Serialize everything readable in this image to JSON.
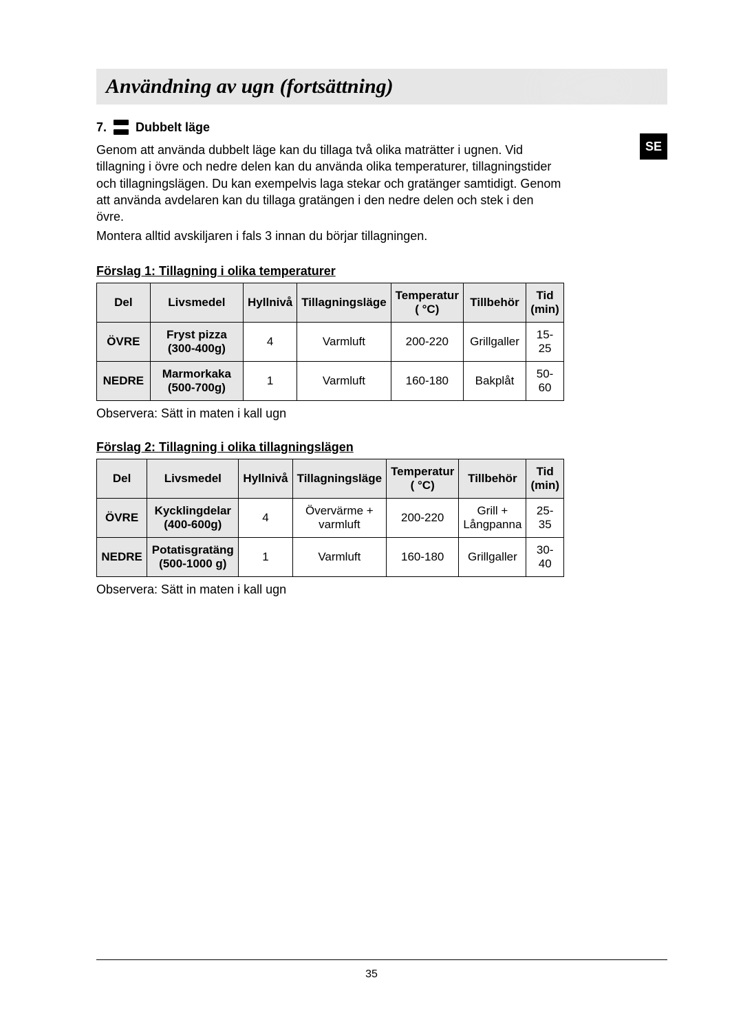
{
  "header": {
    "title": "Användning av ugn (fortsättning)"
  },
  "lang_tab": "SE",
  "section": {
    "number": "7.",
    "heading": "Dubbelt läge",
    "paragraph1": "Genom att använda dubbelt läge kan du tillaga två olika maträtter i ugnen. Vid tillagning i övre och nedre delen kan du använda olika temperaturer, tillagningstider och tillagningslägen. Du kan exempelvis laga stekar och gratänger samtidigt. Genom att använda avdelaren kan du tillaga gratängen i den nedre delen och stek i den övre.",
    "paragraph2": "Montera alltid avskiljaren i fals 3 innan du börjar tillagningen."
  },
  "table_headers": {
    "del": "Del",
    "food": "Livsmedel",
    "level": "Hyllnivå",
    "mode": "Tillagningsläge",
    "temp": "Temperatur ( °C)",
    "acc": "Tillbehör",
    "time": "Tid (min)"
  },
  "suggestion1": {
    "title": "Förslag 1: Tillagning i olika temperaturer",
    "rows": [
      {
        "del": "ÖVRE",
        "food": "Fryst pizza (300-400g)",
        "level": "4",
        "mode": "Varmluft",
        "temp": "200-220",
        "acc": "Grillgaller",
        "time": "15-25"
      },
      {
        "del": "NEDRE",
        "food": "Marmorkaka (500-700g)",
        "level": "1",
        "mode": "Varmluft",
        "temp": "160-180",
        "acc": "Bakplåt",
        "time": "50-60"
      }
    ],
    "note": "Observera: Sätt in maten i kall ugn"
  },
  "suggestion2": {
    "title": "Förslag 2: Tillagning i olika tillagningslägen",
    "rows": [
      {
        "del": "ÖVRE",
        "food": "Kycklingdelar (400-600g)",
        "level": "4",
        "mode": "Övervärme + varmluft",
        "temp": "200-220",
        "acc": "Grill + Långpanna",
        "time": "25-35"
      },
      {
        "del": "NEDRE",
        "food": "Potatisgratäng (500-1000 g)",
        "level": "1",
        "mode": "Varmluft",
        "temp": "160-180",
        "acc": "Grillgaller",
        "time": "30-40"
      }
    ],
    "note": "Observera: Sätt in maten i kall ugn"
  },
  "page_number": "35"
}
